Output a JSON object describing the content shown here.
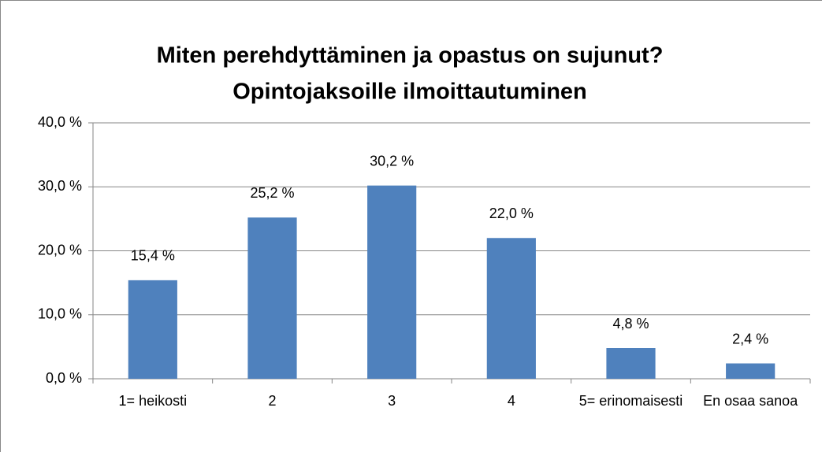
{
  "chart_data": {
    "type": "bar",
    "title": "Miten perehdyttäminen ja opastus on sujunut?",
    "subtitle": "Opintojaksoille ilmoittautuminen",
    "categories": [
      "1= heikosti",
      "2",
      "3",
      "4",
      "5= erinomaisesti",
      "En osaa sanoa"
    ],
    "values": [
      15.4,
      25.2,
      30.2,
      22.0,
      4.8,
      2.4
    ],
    "value_labels": [
      "15,4 %",
      "25,2 %",
      "30,2 %",
      "22,0 %",
      "4,8 %",
      "2,4 %"
    ],
    "color": "#4f81bd",
    "ylim": [
      0,
      40
    ],
    "yticks": [
      {
        "value": 0,
        "label": "0,0 %"
      },
      {
        "value": 10,
        "label": "10,0 %"
      },
      {
        "value": 20,
        "label": "20,0 %"
      },
      {
        "value": 30,
        "label": "30,0 %"
      },
      {
        "value": 40,
        "label": "40,0 %"
      }
    ],
    "grid": true
  }
}
